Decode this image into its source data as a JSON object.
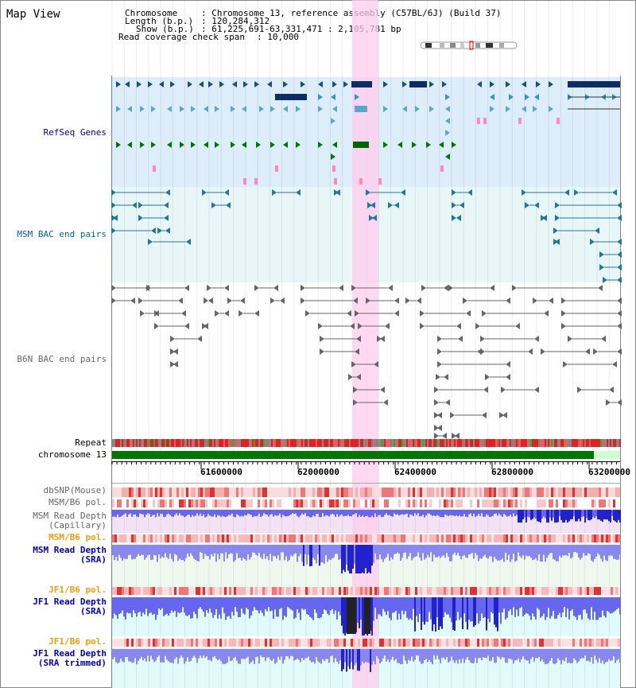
{
  "page_title": "Map View",
  "header": {
    "chromosome_label": "Chromosome",
    "chromosome_value": ": Chromosome 13, reference assembly (C57BL/6J) (Build 37)",
    "length_label": "Length (b.p.)",
    "length_value": ": 120,284,312",
    "show_label": "Show (b.p.)",
    "show_value": ": 61,225,691-63,331,471 : 2,105,781 bp",
    "span_label": "Read coverage check span",
    "span_value": ": 10,000"
  },
  "tracks": {
    "refseq": "RefSeq Genes",
    "msm_bac": "MSM BAC end pairs",
    "b6n_bac": "B6N BAC end pairs",
    "repeat": "Repeat",
    "chromosome": "chromosome 13",
    "dbsnp": "dbSNP(Mouse)",
    "msmb6_pol": "MSM/B6 pol.",
    "msm_depth_cap_1": "MSM Read Depth",
    "msm_depth_cap_2": "(Capillary)",
    "msmb6_pol2": "MSM/B6 pol.",
    "msm_depth_sra_1": "MSM Read Depth",
    "msm_depth_sra_2": "(SRA)",
    "jf1b6_pol": "JF1/B6 pol.",
    "jf1_depth_sra_1": "JF1 Read Depth",
    "jf1_depth_sra_2": "(SRA)",
    "jf1b6_pol2": "JF1/B6 pol.",
    "jf1_depth_trim_1": "JF1 Read Depth",
    "jf1_depth_trim_2": "(SRA trimmed)"
  },
  "ruler": {
    "ticks": [
      "61600000",
      "62000000",
      "62400000",
      "62800000",
      "63200000"
    ]
  },
  "colors": {
    "refseq_label": "#000099",
    "msm_label": "#006699",
    "b6n_label": "#666666",
    "pol_label": "#ff9900",
    "depth_label": "#0000cc",
    "highlight": "#ffccee",
    "chrom_bar": "#007700"
  }
}
